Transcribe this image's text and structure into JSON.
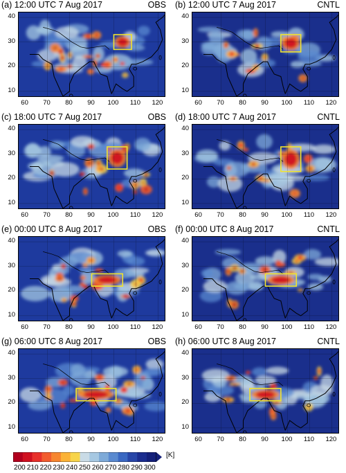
{
  "panels": [
    {
      "title": "(a) 12:00 UTC  7 Aug 2017",
      "tag": "OBS",
      "scheme": "obs",
      "box": [
        100,
        108,
        27,
        33
      ]
    },
    {
      "title": "(b) 12:00 UTC  7 Aug 2017",
      "tag": "CNTL",
      "scheme": "cntl",
      "box": [
        97,
        106,
        26,
        33
      ]
    },
    {
      "title": "(c) 18:00 UTC  7 Aug 2017",
      "tag": "OBS",
      "scheme": "obs",
      "box": [
        97,
        106,
        24,
        33
      ]
    },
    {
      "title": "(d) 18:00 UTC  7 Aug 2017",
      "tag": "CNTL",
      "scheme": "cntl",
      "box": [
        97,
        106,
        23,
        33
      ]
    },
    {
      "title": "(e) 00:00 UTC  8 Aug 2017",
      "tag": "OBS",
      "scheme": "obs",
      "box": [
        90,
        104,
        22,
        27
      ]
    },
    {
      "title": "(f) 00:00 UTC  8 Aug 2017",
      "tag": "CNTL",
      "scheme": "cntl",
      "box": [
        90,
        104,
        22,
        27
      ]
    },
    {
      "title": "(g) 06:00 UTC  8 Aug 2017",
      "tag": "OBS",
      "scheme": "obs",
      "box": [
        83,
        101,
        21,
        26
      ]
    },
    {
      "title": "(h) 06:00 UTC  8 Aug 2017",
      "tag": "CNTL",
      "scheme": "cntl",
      "box": [
        83,
        97,
        21,
        26
      ]
    }
  ],
  "axes": {
    "lon_ticks": [
      "60",
      "70",
      "80",
      "90",
      "100",
      "110",
      "120"
    ],
    "lat_ticks": [
      "40",
      "30",
      "20",
      "10"
    ],
    "lon_range": [
      57,
      123
    ],
    "lat_range": [
      8,
      42
    ]
  },
  "colorbar": {
    "labels": [
      "200",
      "210",
      "220",
      "230",
      "240",
      "250",
      "260",
      "270",
      "280",
      "290",
      "300"
    ],
    "unit": "[K]",
    "colors": [
      "#b2001e",
      "#d01020",
      "#e8302a",
      "#f25c2e",
      "#f7862f",
      "#fbb236",
      "#f7d44a",
      "#c9dbe6",
      "#a6c8e2",
      "#7eaad8",
      "#5a8ad0",
      "#3a68c2",
      "#2846a8",
      "#1b2d8f",
      "#14207a"
    ]
  },
  "box_color": "#f2e32c"
}
